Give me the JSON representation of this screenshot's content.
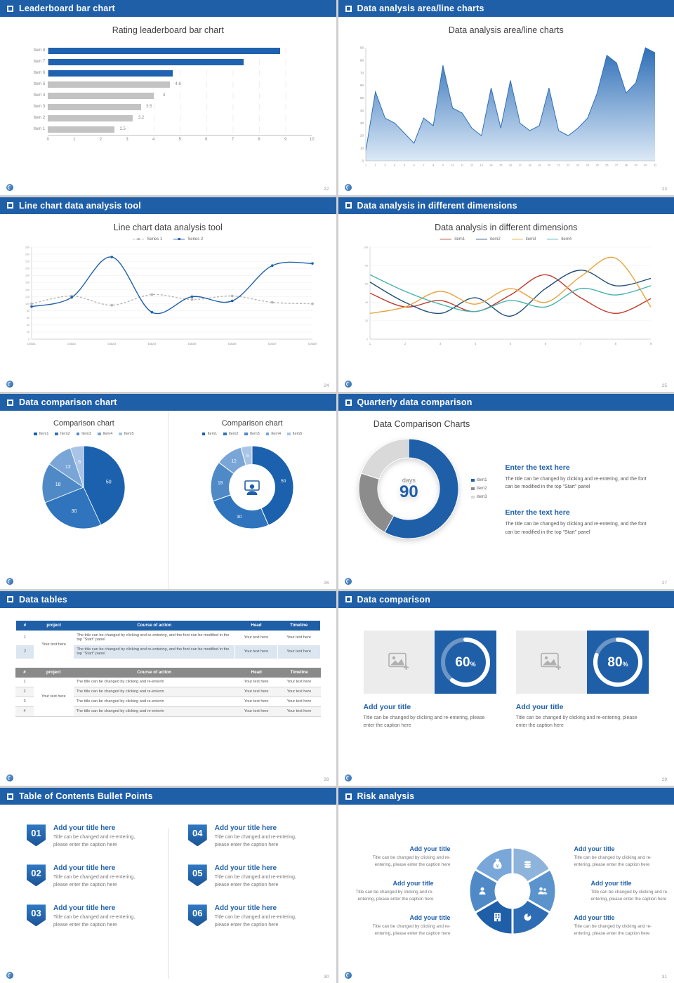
{
  "brand": {
    "accent": "#1f5fa8"
  },
  "slides": [
    {
      "header": "Leaderboard bar chart",
      "page_no": "22",
      "title": "Rating leaderboard bar chart",
      "chart_data": {
        "type": "barh",
        "title": "Rating leaderboard bar chart",
        "categories": [
          "Item 8",
          "Item 7",
          "Item 6",
          "Item 5",
          "Item 4",
          "Item 3",
          "Item 2",
          "Item 1"
        ],
        "values": [
          8.8,
          7.4,
          4.7,
          4.6,
          4,
          3.5,
          3.2,
          2.5
        ],
        "value_labels": [
          "",
          "",
          "",
          "4.6",
          "4",
          "3.5",
          "3.2",
          "2.5"
        ],
        "bar_colors": [
          "#1f62b0",
          "#1f62b0",
          "#1f62b0",
          "#c3c3c3",
          "#c3c3c3",
          "#c3c3c3",
          "#c3c3c3",
          "#c3c3c3"
        ],
        "xlim": [
          0,
          10
        ],
        "xticks": [
          0,
          1,
          2,
          3,
          4,
          5,
          6,
          7,
          8,
          9,
          10
        ]
      }
    },
    {
      "header": "Data analysis area/line charts",
      "page_no": "23",
      "title": "Data analysis area/line charts",
      "chart_data": {
        "type": "area",
        "x": [
          1,
          2,
          3,
          4,
          5,
          6,
          7,
          8,
          9,
          10,
          11,
          12,
          13,
          14,
          15,
          16,
          17,
          18,
          19,
          20,
          21,
          22,
          23,
          24,
          25,
          26,
          27,
          28,
          29,
          30,
          31
        ],
        "values": [
          8,
          55,
          34,
          30,
          22,
          14,
          34,
          28,
          76,
          42,
          38,
          26,
          20,
          58,
          26,
          64,
          30,
          24,
          28,
          58,
          24,
          20,
          26,
          34,
          54,
          84,
          78,
          54,
          62,
          90,
          86
        ],
        "ylim": [
          0,
          90
        ],
        "yticks": [
          0,
          10,
          20,
          30,
          40,
          50,
          60,
          70,
          80,
          90
        ],
        "line_color": "#2f6fb7",
        "fill_top": "#2f6fb7",
        "fill_bottom": "#dce9f7"
      }
    },
    {
      "header": "Line chart data analysis tool",
      "page_no": "24",
      "title": "Line chart data analysis tool",
      "chart_data": {
        "type": "line",
        "smooth": true,
        "categories": [
          "Data1",
          "Data2",
          "Data3",
          "Data4",
          "Data5",
          "Data6",
          "Data7",
          "Data8"
        ],
        "ylim": [
          0,
          260
        ],
        "yticks": [
          0,
          20,
          40,
          60,
          80,
          100,
          120,
          140,
          160,
          180,
          200,
          220,
          240,
          260
        ],
        "series": [
          {
            "name": "Series 1",
            "values": [
              100,
              122,
              96,
              126,
              112,
              122,
              104,
              100
            ],
            "color": "#b5b5b5",
            "dash": true,
            "markers": true
          },
          {
            "name": "Series 2",
            "values": [
              92,
              118,
              232,
              76,
              120,
              108,
              208,
              214
            ],
            "color": "#1f5fa8",
            "dash": false,
            "markers": true
          }
        ]
      }
    },
    {
      "header": "Data analysis in different dimensions",
      "page_no": "25",
      "title": "Data analysis in different dimensions",
      "chart_data": {
        "type": "line",
        "smooth": true,
        "categories": [
          "1",
          "2",
          "3",
          "4",
          "5",
          "6",
          "7",
          "8",
          "9"
        ],
        "ylim": [
          0,
          100
        ],
        "yticks": [
          0,
          20,
          40,
          60,
          80,
          100
        ],
        "series": [
          {
            "name": "item1",
            "values": [
              50,
              35,
              42,
              30,
              48,
              70,
              45,
              28,
              44
            ],
            "color": "#c0392b",
            "markers": false
          },
          {
            "name": "item2",
            "values": [
              62,
              40,
              28,
              45,
              25,
              55,
              75,
              58,
              66
            ],
            "color": "#1f4e79",
            "markers": false
          },
          {
            "name": "item3",
            "values": [
              28,
              35,
              52,
              38,
              55,
              40,
              68,
              88,
              35
            ],
            "color": "#e8a33d",
            "markers": false
          },
          {
            "name": "item4",
            "values": [
              70,
              52,
              38,
              30,
              42,
              35,
              55,
              48,
              58
            ],
            "color": "#45b3b0",
            "markers": false
          }
        ]
      }
    },
    {
      "header": "Data comparison chart",
      "page_no": "26",
      "charts": [
        {
          "title": "Comparison chart",
          "legend": [
            "Item1",
            "Item2",
            "Item3",
            "Item4",
            "Item5"
          ],
          "chart_data": {
            "type": "pie",
            "values": [
              50,
              30,
              18,
              12,
              6
            ],
            "labels": [
              "50",
              "30",
              "18",
              "12",
              "6"
            ],
            "colors": [
              "#1b61ae",
              "#2f74bc",
              "#4f8ac7",
              "#7aa6d7",
              "#a9c4e6"
            ]
          }
        },
        {
          "title": "Comparison chart",
          "legend": [
            "Item1",
            "Item2",
            "Item3",
            "Item4",
            "Item5"
          ],
          "chart_data": {
            "type": "donut",
            "inner": 0.55,
            "values": [
              50,
              30,
              18,
              12,
              5
            ],
            "labels": [
              "50",
              "30",
              "18",
              "12",
              "5"
            ],
            "colors": [
              "#1b61ae",
              "#2f74bc",
              "#4f8ac7",
              "#7aa6d7",
              "#a9c4e6"
            ]
          }
        }
      ]
    },
    {
      "header": "Quarterly data comparison",
      "page_no": "27",
      "title": "Data Comparison Charts",
      "donut": {
        "type": "donut",
        "inner": 0.62,
        "values": [
          58,
          22,
          20
        ],
        "labels": null,
        "colors": [
          "#1f5fa8",
          "#8c8c8c",
          "#d9d9d9"
        ]
      },
      "center": {
        "label": "days",
        "value": "90"
      },
      "legend": [
        "item1",
        "item2",
        "item3"
      ],
      "legend_colors": [
        "#1f5fa8",
        "#8c8c8c",
        "#d9d9d9"
      ],
      "blocks": [
        {
          "title": "Enter the text here",
          "body": "The title can be changed by clicking and re-entering, and the font can be modified in the top \"Start\" panel"
        },
        {
          "title": "Enter the text here",
          "body": "The title can be changed by clicking and re-entering, and the font can be modified in the top \"Start\" panel"
        }
      ]
    },
    {
      "header": "Data tables",
      "page_no": "28",
      "tables": [
        {
          "theme": "t-blue",
          "columns": [
            "#",
            "project",
            "Course of action",
            "Head",
            "Timeline"
          ],
          "project_text": "Your text here",
          "rows": [
            {
              "num": "1",
              "course": "The title can be changed by clicking and re-entering, and the font can be modified in the top \"Start\" panel",
              "head": "Your text here",
              "timeline": "Your text here"
            },
            {
              "num": "2",
              "course": "The title can be changed by clicking and re-entering, and the font can be modified in the top \"Start\" panel",
              "head": "Your text here",
              "timeline": "Your text here"
            }
          ]
        },
        {
          "theme": "t-gray",
          "columns": [
            "#",
            "project",
            "Course of action",
            "Head",
            "Timeline"
          ],
          "project_text": "Your text here",
          "rows": [
            {
              "num": "1",
              "course": "The title can be changed by clicking and re-enterin",
              "head": "Your text here",
              "timeline": "Your text here"
            },
            {
              "num": "2",
              "course": "The title can be changed by clicking and re-enterin",
              "head": "Your text here",
              "timeline": "Your text here"
            },
            {
              "num": "3",
              "course": "The title can be changed by clicking and re-enterin",
              "head": "Your text here",
              "timeline": "Your text here"
            },
            {
              "num": "4",
              "course": "The title can be changed by clicking and re-enterin",
              "head": "Your text here",
              "timeline": "Your text here"
            }
          ]
        }
      ]
    },
    {
      "header": "Data comparison",
      "page_no": "29",
      "cards": [
        {
          "ring": {
            "type": "ring",
            "percent": 60,
            "suffix": "%"
          },
          "title": "Add your title",
          "caption": "Title can be changed by clicking and re-entering, please enter the caption here"
        },
        {
          "ring": {
            "type": "ring",
            "percent": 80,
            "suffix": "%"
          },
          "title": "Add your title",
          "caption": "Title can be changed by clicking and re-entering, please enter the caption here"
        }
      ]
    },
    {
      "header": "Table of Contents Bullet Points",
      "page_no": "30",
      "items": [
        {
          "num": "01",
          "title": "Add your title here",
          "caption": "Title can be changed and re-entering, please enter the caption here"
        },
        {
          "num": "02",
          "title": "Add your title here",
          "caption": "Title can be changed and re-entering, please enter the caption here"
        },
        {
          "num": "03",
          "title": "Add your title here",
          "caption": "Title can be changed and re-entering, please enter the caption here"
        },
        {
          "num": "04",
          "title": "Add your title here",
          "caption": "Title can be changed and re-entering, please enter the caption here"
        },
        {
          "num": "05",
          "title": "Add your title here",
          "caption": "Title can be changed and re-entering, please enter the caption here"
        },
        {
          "num": "06",
          "title": "Add your title here",
          "caption": "Title can be changed and re-entering, please enter the caption here"
        }
      ]
    },
    {
      "header": "Risk analysis",
      "page_no": "31",
      "icons": [
        "money-bag",
        "coins",
        "people",
        "pie-chart",
        "building",
        "person"
      ],
      "blocks": [
        {
          "title": "Add your title",
          "caption": "Title can be changed by clicking and re-entering, please enter the caption here"
        },
        {
          "title": "Add your title",
          "caption": "Title can be changed by clicking and re-entering, please enter the caption here"
        },
        {
          "title": "Add your title",
          "caption": "Title can be changed by clicking and re-entering, please enter the caption here"
        },
        {
          "title": "Add your title",
          "caption": "Title can be changed by clicking and re-entering, please enter the caption here"
        },
        {
          "title": "Add your title",
          "caption": "Title can be changed by clicking and re-entering, please enter the caption here"
        },
        {
          "title": "Add your title",
          "caption": "Title can be changed by clicking and re-entering, please enter the caption here"
        }
      ]
    }
  ]
}
